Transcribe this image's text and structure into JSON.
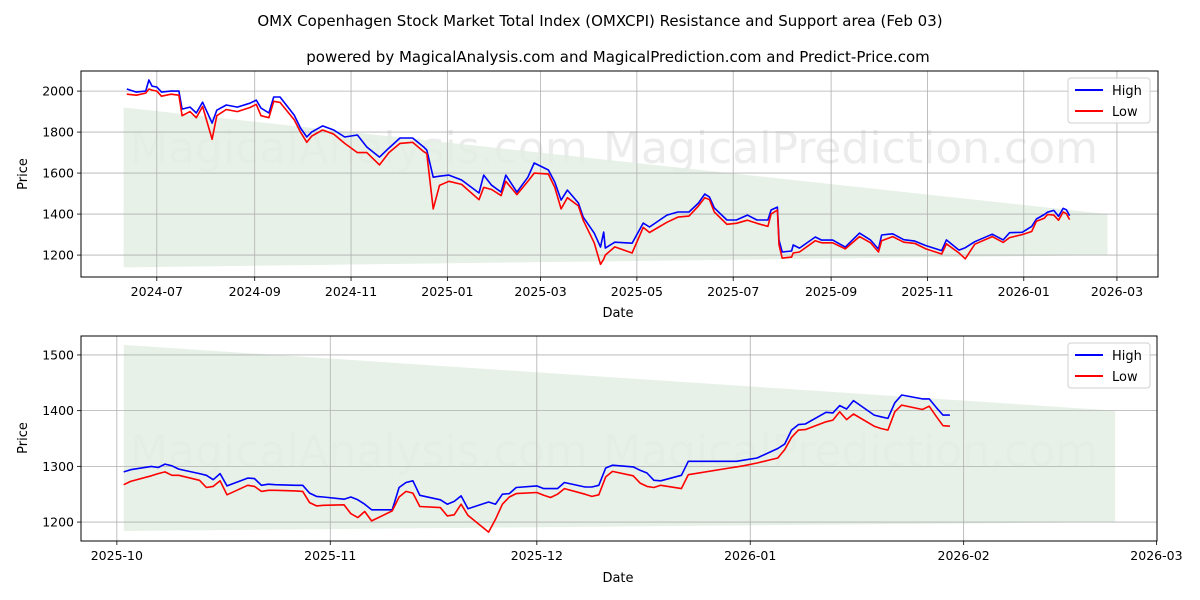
{
  "title": "OMX Copenhagen Stock Market Total Index (OMXCPI) Resistance and Support area (Feb 03)",
  "subtitle": "powered by MagicalAnalysis.com and MagicalPrediction.com and Predict-Price.com",
  "watermarks": [
    "MagicalAnalysis.com",
    "MagicalPrediction.com"
  ],
  "colors": {
    "high": "#0000ff",
    "low": "#ff0000",
    "band": "#e3efe3",
    "grid": "#b0b0b0"
  },
  "chart_data": [
    {
      "type": "line",
      "xlabel": "Date",
      "ylabel": "Price",
      "xlim": [
        "2024-05-14",
        "2026-03-27"
      ],
      "ylim": [
        1093,
        2098
      ],
      "grid": true,
      "legend": {
        "placement": "top-right",
        "entries": [
          "High",
          "Low"
        ]
      },
      "yticks": [
        1200,
        1400,
        1600,
        1800,
        2000
      ],
      "xticks": [
        {
          "date": "2024-07-01",
          "label": "2024-07"
        },
        {
          "date": "2024-09-01",
          "label": "2024-09"
        },
        {
          "date": "2024-11-01",
          "label": "2024-11"
        },
        {
          "date": "2025-01-01",
          "label": "2025-01"
        },
        {
          "date": "2025-03-01",
          "label": "2025-03"
        },
        {
          "date": "2025-05-01",
          "label": "2025-05"
        },
        {
          "date": "2025-07-01",
          "label": "2025-07"
        },
        {
          "date": "2025-09-01",
          "label": "2025-09"
        },
        {
          "date": "2025-11-01",
          "label": "2025-11"
        },
        {
          "date": "2026-01-01",
          "label": "2026-01"
        },
        {
          "date": "2026-03-01",
          "label": "2026-03"
        }
      ],
      "band": {
        "start": "2024-06-10",
        "end": "2026-02-23",
        "upper": [
          1920,
          1400
        ],
        "lower": [
          1140,
          1200
        ]
      },
      "series_columns": [
        "date",
        "high",
        "low"
      ],
      "series": [
        [
          "2024-06-12",
          2010,
          1985
        ],
        [
          "2024-06-18",
          1995,
          1980
        ],
        [
          "2024-06-24",
          2000,
          1990
        ],
        [
          "2024-06-26",
          2054,
          2010
        ],
        [
          "2024-06-28",
          2024,
          2005
        ],
        [
          "2024-07-01",
          2020,
          2000
        ],
        [
          "2024-07-04",
          1995,
          1975
        ],
        [
          "2024-07-10",
          2000,
          1985
        ],
        [
          "2024-07-15",
          2000,
          1980
        ],
        [
          "2024-07-17",
          1912,
          1880
        ],
        [
          "2024-07-22",
          1922,
          1900
        ],
        [
          "2024-07-26",
          1893,
          1870
        ],
        [
          "2024-07-30",
          1946,
          1925
        ],
        [
          "2024-08-05",
          1844,
          1765
        ],
        [
          "2024-08-08",
          1907,
          1880
        ],
        [
          "2024-08-14",
          1932,
          1910
        ],
        [
          "2024-08-21",
          1922,
          1900
        ],
        [
          "2024-08-29",
          1941,
          1920
        ],
        [
          "2024-09-02",
          1956,
          1935
        ],
        [
          "2024-09-05",
          1917,
          1880
        ],
        [
          "2024-09-10",
          1893,
          1870
        ],
        [
          "2024-09-13",
          1971,
          1950
        ],
        [
          "2024-09-17",
          1971,
          1945
        ],
        [
          "2024-09-26",
          1883,
          1860
        ],
        [
          "2024-09-30",
          1820,
          1800
        ],
        [
          "2024-10-04",
          1776,
          1750
        ],
        [
          "2024-10-07",
          1800,
          1780
        ],
        [
          "2024-10-14",
          1830,
          1810
        ],
        [
          "2024-10-21",
          1810,
          1790
        ],
        [
          "2024-10-28",
          1776,
          1745
        ],
        [
          "2024-11-05",
          1786,
          1700
        ],
        [
          "2024-11-11",
          1727,
          1700
        ],
        [
          "2024-11-19",
          1678,
          1640
        ],
        [
          "2024-11-25",
          1722,
          1700
        ],
        [
          "2024-12-02",
          1771,
          1745
        ],
        [
          "2024-12-10",
          1771,
          1750
        ],
        [
          "2024-12-17",
          1727,
          1705
        ],
        [
          "2024-12-19",
          1712,
          1695
        ],
        [
          "2024-12-23",
          1580,
          1425
        ],
        [
          "2024-12-27",
          1585,
          1540
        ],
        [
          "2025-01-02",
          1590,
          1560
        ],
        [
          "2025-01-10",
          1566,
          1545
        ],
        [
          "2025-01-21",
          1503,
          1470
        ],
        [
          "2025-01-24",
          1590,
          1530
        ],
        [
          "2025-01-29",
          1541,
          1520
        ],
        [
          "2025-02-04",
          1507,
          1490
        ],
        [
          "2025-02-07",
          1590,
          1560
        ],
        [
          "2025-02-14",
          1507,
          1495
        ],
        [
          "2025-02-21",
          1580,
          1560
        ],
        [
          "2025-02-25",
          1649,
          1600
        ],
        [
          "2025-03-06",
          1615,
          1595
        ],
        [
          "2025-03-10",
          1556,
          1530
        ],
        [
          "2025-03-14",
          1468,
          1425
        ],
        [
          "2025-03-18",
          1517,
          1480
        ],
        [
          "2025-03-25",
          1454,
          1440
        ],
        [
          "2025-03-28",
          1385,
          1370
        ],
        [
          "2025-04-04",
          1307,
          1260
        ],
        [
          "2025-04-08",
          1239,
          1155
        ],
        [
          "2025-04-10",
          1312,
          1180
        ],
        [
          "2025-04-11",
          1234,
          1200
        ],
        [
          "2025-04-17",
          1263,
          1240
        ],
        [
          "2025-04-28",
          1258,
          1210
        ],
        [
          "2025-05-05",
          1356,
          1335
        ],
        [
          "2025-05-09",
          1337,
          1310
        ],
        [
          "2025-05-20",
          1395,
          1360
        ],
        [
          "2025-05-27",
          1410,
          1385
        ],
        [
          "2025-06-03",
          1410,
          1390
        ],
        [
          "2025-06-09",
          1454,
          1440
        ],
        [
          "2025-06-13",
          1498,
          1480
        ],
        [
          "2025-06-16",
          1483,
          1470
        ],
        [
          "2025-06-19",
          1430,
          1410
        ],
        [
          "2025-06-27",
          1371,
          1350
        ],
        [
          "2025-07-03",
          1371,
          1355
        ],
        [
          "2025-07-10",
          1395,
          1370
        ],
        [
          "2025-07-16",
          1371,
          1355
        ],
        [
          "2025-07-23",
          1371,
          1340
        ],
        [
          "2025-07-25",
          1420,
          1400
        ],
        [
          "2025-07-29",
          1434,
          1420
        ],
        [
          "2025-07-30",
          1273,
          1250
        ],
        [
          "2025-08-01",
          1215,
          1185
        ],
        [
          "2025-08-07",
          1220,
          1190
        ],
        [
          "2025-08-08",
          1249,
          1210
        ],
        [
          "2025-08-12",
          1234,
          1215
        ],
        [
          "2025-08-22",
          1288,
          1270
        ],
        [
          "2025-08-26",
          1273,
          1260
        ],
        [
          "2025-09-02",
          1273,
          1260
        ],
        [
          "2025-09-10",
          1239,
          1230
        ],
        [
          "2025-09-19",
          1307,
          1290
        ],
        [
          "2025-09-26",
          1273,
          1260
        ],
        [
          "2025-10-01",
          1229,
          1215
        ],
        [
          "2025-10-03",
          1298,
          1270
        ],
        [
          "2025-10-10",
          1304,
          1290
        ],
        [
          "2025-10-17",
          1275,
          1263
        ],
        [
          "2025-10-24",
          1268,
          1257
        ],
        [
          "2025-10-31",
          1246,
          1230
        ],
        [
          "2025-11-10",
          1222,
          1205
        ],
        [
          "2025-11-13",
          1274,
          1255
        ],
        [
          "2025-11-21",
          1224,
          1210
        ],
        [
          "2025-11-25",
          1236,
          1182
        ],
        [
          "2025-12-01",
          1265,
          1253
        ],
        [
          "2025-12-12",
          1302,
          1290
        ],
        [
          "2025-12-19",
          1274,
          1262
        ],
        [
          "2025-12-23",
          1309,
          1285
        ],
        [
          "2025-12-31",
          1311,
          1300
        ],
        [
          "2026-01-06",
          1340,
          1315
        ],
        [
          "2026-01-09",
          1376,
          1365
        ],
        [
          "2026-01-14",
          1398,
          1380
        ],
        [
          "2026-01-16",
          1409,
          1398
        ],
        [
          "2026-01-20",
          1418,
          1395
        ],
        [
          "2026-01-23",
          1389,
          1370
        ],
        [
          "2026-01-26",
          1428,
          1410
        ],
        [
          "2026-01-28",
          1421,
          1402
        ],
        [
          "2026-01-30",
          1392,
          1373
        ]
      ]
    },
    {
      "type": "line",
      "xlabel": "Date",
      "ylabel": "Price",
      "xlim": [
        "2025-09-25T19:00:00Z",
        "2026-03-01T02:00:00Z"
      ],
      "ylim": [
        1166,
        1534
      ],
      "grid": true,
      "legend": {
        "placement": "top-right",
        "entries": [
          "High",
          "Low"
        ]
      },
      "yticks": [
        1200,
        1300,
        1400,
        1500
      ],
      "xticks": [
        {
          "date": "2025-10-01",
          "label": "2025-10"
        },
        {
          "date": "2025-11-01",
          "label": "2025-11"
        },
        {
          "date": "2025-12-01",
          "label": "2025-12"
        },
        {
          "date": "2026-01-01",
          "label": "2026-01"
        },
        {
          "date": "2026-02-01",
          "label": "2026-02"
        },
        {
          "date": "2026-03-01",
          "label": "2026-03"
        }
      ],
      "band": {
        "start": "2025-10-02",
        "end": "2026-02-23",
        "upper": [
          1518,
          1400
        ],
        "lower": [
          1184,
          1200
        ]
      },
      "series_columns": [
        "date",
        "high",
        "low"
      ],
      "series": [
        [
          "2025-10-02",
          1290,
          1267
        ],
        [
          "2025-10-03",
          1294,
          1273
        ],
        [
          "2025-10-06",
          1300,
          1283
        ],
        [
          "2025-10-07",
          1298,
          1287
        ],
        [
          "2025-10-08",
          1304,
          1290
        ],
        [
          "2025-10-09",
          1301,
          1284
        ],
        [
          "2025-10-10",
          1295,
          1284
        ],
        [
          "2025-10-13",
          1287,
          1275
        ],
        [
          "2025-10-14",
          1284,
          1262
        ],
        [
          "2025-10-15",
          1276,
          1264
        ],
        [
          "2025-10-16",
          1287,
          1274
        ],
        [
          "2025-10-17",
          1265,
          1249
        ],
        [
          "2025-10-20",
          1279,
          1266
        ],
        [
          "2025-10-21",
          1278,
          1264
        ],
        [
          "2025-10-22",
          1266,
          1255
        ],
        [
          "2025-10-23",
          1268,
          1257
        ],
        [
          "2025-10-24",
          1267,
          1257
        ],
        [
          "2025-10-27",
          1266,
          1256
        ],
        [
          "2025-10-28",
          1266,
          1255
        ],
        [
          "2025-10-29",
          1252,
          1235
        ],
        [
          "2025-10-30",
          1246,
          1229
        ],
        [
          "2025-10-31",
          1245,
          1230
        ],
        [
          "2025-11-03",
          1241,
          1231
        ],
        [
          "2025-11-04",
          1245,
          1215
        ],
        [
          "2025-11-05",
          1240,
          1208
        ],
        [
          "2025-11-06",
          1232,
          1219
        ],
        [
          "2025-11-07",
          1222,
          1202
        ],
        [
          "2025-11-10",
          1222,
          1220
        ],
        [
          "2025-11-11",
          1262,
          1245
        ],
        [
          "2025-11-12",
          1271,
          1255
        ],
        [
          "2025-11-13",
          1274,
          1252
        ],
        [
          "2025-11-14",
          1248,
          1228
        ],
        [
          "2025-11-17",
          1240,
          1226
        ],
        [
          "2025-11-18",
          1232,
          1211
        ],
        [
          "2025-11-19",
          1237,
          1213
        ],
        [
          "2025-11-20",
          1247,
          1232
        ],
        [
          "2025-11-21",
          1224,
          1212
        ],
        [
          "2025-11-24",
          1236,
          1182
        ],
        [
          "2025-11-25",
          1232,
          1205
        ],
        [
          "2025-11-26",
          1250,
          1232
        ],
        [
          "2025-11-27",
          1251,
          1245
        ],
        [
          "2025-11-28",
          1262,
          1251
        ],
        [
          "2025-12-01",
          1265,
          1253
        ],
        [
          "2025-12-02",
          1260,
          1248
        ],
        [
          "2025-12-03",
          1260,
          1244
        ],
        [
          "2025-12-04",
          1260,
          1250
        ],
        [
          "2025-12-05",
          1271,
          1260
        ],
        [
          "2025-12-08",
          1263,
          1250
        ],
        [
          "2025-12-09",
          1263,
          1246
        ],
        [
          "2025-12-10",
          1266,
          1249
        ],
        [
          "2025-12-11",
          1297,
          1281
        ],
        [
          "2025-12-12",
          1302,
          1291
        ],
        [
          "2025-12-15",
          1299,
          1283
        ],
        [
          "2025-12-16",
          1293,
          1270
        ],
        [
          "2025-12-17",
          1288,
          1264
        ],
        [
          "2025-12-18",
          1275,
          1262
        ],
        [
          "2025-12-19",
          1274,
          1266
        ],
        [
          "2025-12-22",
          1284,
          1260
        ],
        [
          "2025-12-23",
          1309,
          1285
        ],
        [
          "2025-12-29",
          1309,
          1297
        ],
        [
          "2025-12-30",
          1309,
          1299
        ],
        [
          "2025-12-31",
          1311,
          1301
        ],
        [
          "2026-01-02",
          1315,
          1306
        ],
        [
          "2026-01-05",
          1332,
          1315
        ],
        [
          "2026-01-06",
          1340,
          1330
        ],
        [
          "2026-01-07",
          1365,
          1352
        ],
        [
          "2026-01-08",
          1375,
          1365
        ],
        [
          "2026-01-09",
          1376,
          1366
        ],
        [
          "2026-01-12",
          1397,
          1380
        ],
        [
          "2026-01-13",
          1396,
          1383
        ],
        [
          "2026-01-14",
          1409,
          1398
        ],
        [
          "2026-01-15",
          1403,
          1384
        ],
        [
          "2026-01-16",
          1418,
          1394
        ],
        [
          "2026-01-19",
          1392,
          1372
        ],
        [
          "2026-01-20",
          1389,
          1368
        ],
        [
          "2026-01-21",
          1386,
          1365
        ],
        [
          "2026-01-22",
          1414,
          1398
        ],
        [
          "2026-01-23",
          1428,
          1410
        ],
        [
          "2026-01-26",
          1421,
          1402
        ],
        [
          "2026-01-27",
          1421,
          1408
        ],
        [
          "2026-01-28",
          1406,
          1390
        ],
        [
          "2026-01-29",
          1392,
          1373
        ],
        [
          "2026-01-30",
          1392,
          1372
        ]
      ]
    }
  ]
}
